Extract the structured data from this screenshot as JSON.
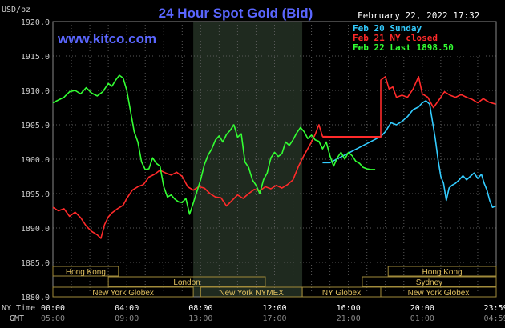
{
  "header": {
    "unit": "USD/oz",
    "title": "24 Hour Spot Gold (Bid)",
    "site": "www.kitco.com",
    "timestamp": "February 22, 2022 17:32"
  },
  "legend": [
    {
      "label": "Feb 20 Sunday",
      "color": "#33ccff"
    },
    {
      "label": "Feb 21 NY closed",
      "color": "#ff2a2a"
    },
    {
      "label": "Feb 22 Last 1898.50",
      "color": "#33ff33"
    }
  ],
  "axis_left": {
    "ny_time_label": "NY Time",
    "gmt_label": "GMT"
  },
  "markets": [
    {
      "name": "Hong Kong",
      "row": 0,
      "start": 0,
      "end": 3.55
    },
    {
      "name": "Hong Kong",
      "row": 0,
      "start": 18.15,
      "end": 24
    },
    {
      "name": "London",
      "row": 1,
      "start": 3.0,
      "end": 11.5
    },
    {
      "name": "Sydney",
      "row": 1,
      "start": 16.75,
      "end": 24
    },
    {
      "name": "New York Globex",
      "row": 2,
      "start": 0,
      "end": 7.6
    },
    {
      "name": "New York NYMEX",
      "row": 2,
      "start": 8.0,
      "end": 13.5
    },
    {
      "name": "NY Globex",
      "row": 2,
      "start": 13.5,
      "end": 17.75
    },
    {
      "name": "New York Globex",
      "row": 2,
      "start": 17.75,
      "end": 24
    }
  ],
  "chart_data": {
    "type": "line",
    "title": "24 Hour Spot Gold (Bid)",
    "ylabel": "USD/oz",
    "ylim": [
      1880,
      1920
    ],
    "yticks": [
      1880,
      1885,
      1890,
      1895,
      1900,
      1905,
      1910,
      1915,
      1920
    ],
    "ytick_labels": [
      "1880.0",
      "1885.0",
      "1890.0",
      "1895.0",
      "1900.0",
      "1905.0",
      "1910.0",
      "1915.0",
      "1920.0"
    ],
    "xlim": [
      0,
      24
    ],
    "xticks_ny": [
      {
        "h": 0,
        "label": "00:00"
      },
      {
        "h": 4,
        "label": "04:00"
      },
      {
        "h": 8,
        "label": "08:00"
      },
      {
        "h": 12,
        "label": "12:00"
      },
      {
        "h": 16,
        "label": "16:00"
      },
      {
        "h": 20,
        "label": "20:00"
      },
      {
        "h": 23.98,
        "label": "23:59"
      }
    ],
    "xticks_gmt": [
      {
        "h": 0,
        "label": "05:00"
      },
      {
        "h": 4,
        "label": "09:00"
      },
      {
        "h": 8,
        "label": "13:00"
      },
      {
        "h": 12,
        "label": "17:00"
      },
      {
        "h": 16,
        "label": "21:00"
      },
      {
        "h": 20,
        "label": "01:00"
      },
      {
        "h": 23.98,
        "label": "04:59"
      }
    ],
    "highlight_region": [
      7.6,
      13.5
    ],
    "grid": true,
    "series": [
      {
        "name": "Feb 20 Sunday",
        "color": "#33ccff",
        "points": [
          [
            14.6,
            1899.5
          ],
          [
            15.0,
            1899.5
          ],
          [
            17.75,
            1903.3
          ],
          [
            18.0,
            1904.0
          ],
          [
            18.3,
            1905.3
          ],
          [
            18.6,
            1905.0
          ],
          [
            18.9,
            1905.5
          ],
          [
            19.2,
            1906.2
          ],
          [
            19.5,
            1907.2
          ],
          [
            19.8,
            1907.6
          ],
          [
            20.0,
            1908.2
          ],
          [
            20.2,
            1908.5
          ],
          [
            20.4,
            1908.0
          ],
          [
            20.55,
            1905.5
          ],
          [
            20.7,
            1903.0
          ],
          [
            20.85,
            1900.0
          ],
          [
            21.0,
            1897.5
          ],
          [
            21.15,
            1896.5
          ],
          [
            21.3,
            1894.0
          ],
          [
            21.45,
            1895.8
          ],
          [
            21.6,
            1896.2
          ],
          [
            21.8,
            1896.5
          ],
          [
            22.0,
            1897.0
          ],
          [
            22.2,
            1897.6
          ],
          [
            22.4,
            1897.0
          ],
          [
            22.6,
            1897.5
          ],
          [
            22.8,
            1898.0
          ],
          [
            23.0,
            1897.2
          ],
          [
            23.2,
            1897.8
          ],
          [
            23.35,
            1896.5
          ],
          [
            23.5,
            1895.5
          ],
          [
            23.65,
            1894.0
          ],
          [
            23.8,
            1893.0
          ],
          [
            23.98,
            1893.2
          ]
        ]
      },
      {
        "name": "Feb 21 NY closed",
        "color": "#ff2a2a",
        "points": [
          [
            0,
            1893.0
          ],
          [
            0.3,
            1892.5
          ],
          [
            0.6,
            1892.8
          ],
          [
            0.9,
            1891.7
          ],
          [
            1.2,
            1892.3
          ],
          [
            1.5,
            1891.5
          ],
          [
            1.8,
            1890.3
          ],
          [
            2.1,
            1889.5
          ],
          [
            2.4,
            1889.0
          ],
          [
            2.6,
            1888.5
          ],
          [
            2.8,
            1890.5
          ],
          [
            3.0,
            1891.6
          ],
          [
            3.2,
            1892.2
          ],
          [
            3.5,
            1892.8
          ],
          [
            3.8,
            1893.3
          ],
          [
            4.0,
            1894.3
          ],
          [
            4.3,
            1895.5
          ],
          [
            4.6,
            1896.0
          ],
          [
            4.9,
            1896.3
          ],
          [
            5.2,
            1897.4
          ],
          [
            5.5,
            1897.8
          ],
          [
            5.8,
            1898.4
          ],
          [
            6.1,
            1898.0
          ],
          [
            6.4,
            1897.7
          ],
          [
            6.7,
            1898.1
          ],
          [
            7.0,
            1897.5
          ],
          [
            7.3,
            1896.0
          ],
          [
            7.6,
            1895.5
          ],
          [
            7.9,
            1896.0
          ],
          [
            8.2,
            1895.8
          ],
          [
            8.5,
            1895.0
          ],
          [
            8.8,
            1894.5
          ],
          [
            9.1,
            1894.4
          ],
          [
            9.4,
            1893.2
          ],
          [
            9.7,
            1894.0
          ],
          [
            10.0,
            1894.8
          ],
          [
            10.3,
            1894.3
          ],
          [
            10.6,
            1895.0
          ],
          [
            10.9,
            1895.6
          ],
          [
            11.2,
            1895.4
          ],
          [
            11.5,
            1896.0
          ],
          [
            11.8,
            1895.7
          ],
          [
            12.1,
            1896.2
          ],
          [
            12.4,
            1895.8
          ],
          [
            12.7,
            1896.3
          ],
          [
            13.0,
            1897.0
          ],
          [
            13.3,
            1899.0
          ],
          [
            13.6,
            1900.6
          ],
          [
            13.9,
            1902.0
          ],
          [
            14.2,
            1903.6
          ],
          [
            14.4,
            1905.0
          ],
          [
            14.6,
            1903.3
          ],
          [
            16.0,
            1903.2
          ],
          [
            17.75,
            1903.2
          ],
          [
            17.75,
            1911.5
          ],
          [
            18.0,
            1912.0
          ],
          [
            18.2,
            1910.2
          ],
          [
            18.4,
            1910.5
          ],
          [
            18.6,
            1909.0
          ],
          [
            18.9,
            1909.3
          ],
          [
            19.2,
            1909.0
          ],
          [
            19.5,
            1910.2
          ],
          [
            19.8,
            1912.0
          ],
          [
            20.0,
            1909.5
          ],
          [
            20.3,
            1909.0
          ],
          [
            20.6,
            1907.5
          ],
          [
            20.9,
            1908.6
          ],
          [
            21.2,
            1909.8
          ],
          [
            21.5,
            1909.3
          ],
          [
            21.8,
            1909.0
          ],
          [
            22.1,
            1909.4
          ],
          [
            22.4,
            1909.0
          ],
          [
            22.7,
            1908.7
          ],
          [
            23.0,
            1908.2
          ],
          [
            23.3,
            1908.8
          ],
          [
            23.6,
            1908.3
          ],
          [
            23.98,
            1908.0
          ]
        ]
      },
      {
        "name": "Feb 22 Last 1898.50",
        "color": "#33ff33",
        "points": [
          [
            0,
            1908.2
          ],
          [
            0.3,
            1908.6
          ],
          [
            0.6,
            1909.0
          ],
          [
            0.9,
            1909.8
          ],
          [
            1.2,
            1910.0
          ],
          [
            1.5,
            1909.5
          ],
          [
            1.8,
            1910.4
          ],
          [
            2.1,
            1909.6
          ],
          [
            2.4,
            1909.2
          ],
          [
            2.7,
            1909.8
          ],
          [
            3.0,
            1911.0
          ],
          [
            3.2,
            1910.6
          ],
          [
            3.4,
            1911.5
          ],
          [
            3.6,
            1912.2
          ],
          [
            3.8,
            1911.8
          ],
          [
            4.0,
            1910.0
          ],
          [
            4.2,
            1907.0
          ],
          [
            4.4,
            1904.0
          ],
          [
            4.6,
            1902.5
          ],
          [
            4.8,
            1899.6
          ],
          [
            5.0,
            1898.5
          ],
          [
            5.2,
            1898.6
          ],
          [
            5.4,
            1900.2
          ],
          [
            5.6,
            1899.4
          ],
          [
            5.8,
            1899.0
          ],
          [
            6.0,
            1896.0
          ],
          [
            6.2,
            1894.5
          ],
          [
            6.4,
            1894.8
          ],
          [
            6.6,
            1894.2
          ],
          [
            6.8,
            1893.8
          ],
          [
            7.0,
            1893.7
          ],
          [
            7.2,
            1894.3
          ],
          [
            7.4,
            1892.0
          ],
          [
            7.6,
            1893.6
          ],
          [
            7.8,
            1895.3
          ],
          [
            8.0,
            1897.0
          ],
          [
            8.2,
            1899.2
          ],
          [
            8.4,
            1900.6
          ],
          [
            8.6,
            1901.5
          ],
          [
            8.8,
            1902.8
          ],
          [
            9.0,
            1903.4
          ],
          [
            9.2,
            1902.5
          ],
          [
            9.4,
            1903.6
          ],
          [
            9.6,
            1904.2
          ],
          [
            9.8,
            1905.0
          ],
          [
            10.0,
            1903.2
          ],
          [
            10.2,
            1903.7
          ],
          [
            10.4,
            1899.6
          ],
          [
            10.6,
            1898.8
          ],
          [
            10.8,
            1897.0
          ],
          [
            11.0,
            1896.2
          ],
          [
            11.2,
            1895.0
          ],
          [
            11.4,
            1897.0
          ],
          [
            11.6,
            1898.0
          ],
          [
            11.8,
            1900.2
          ],
          [
            12.0,
            1901.0
          ],
          [
            12.2,
            1900.4
          ],
          [
            12.4,
            1900.8
          ],
          [
            12.6,
            1902.5
          ],
          [
            12.8,
            1902.0
          ],
          [
            13.0,
            1902.8
          ],
          [
            13.2,
            1903.8
          ],
          [
            13.4,
            1904.6
          ],
          [
            13.6,
            1904.0
          ],
          [
            13.8,
            1903.0
          ],
          [
            14.0,
            1903.5
          ],
          [
            14.2,
            1902.8
          ],
          [
            14.4,
            1902.6
          ],
          [
            14.6,
            1901.5
          ],
          [
            14.8,
            1902.5
          ],
          [
            15.0,
            1900.5
          ],
          [
            15.2,
            1899.0
          ],
          [
            15.4,
            1900.2
          ],
          [
            15.6,
            1901.0
          ],
          [
            15.8,
            1900.0
          ],
          [
            16.0,
            1901.0
          ],
          [
            16.2,
            1900.5
          ],
          [
            16.4,
            1899.7
          ],
          [
            16.6,
            1899.4
          ],
          [
            16.8,
            1898.8
          ],
          [
            17.0,
            1898.6
          ],
          [
            17.2,
            1898.5
          ],
          [
            17.45,
            1898.5
          ]
        ]
      }
    ]
  }
}
